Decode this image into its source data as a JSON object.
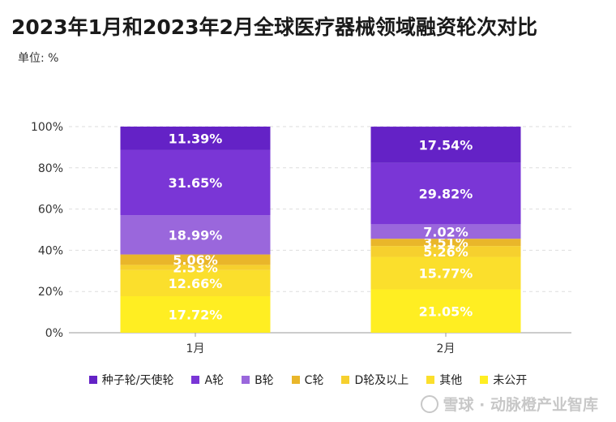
{
  "page": {
    "title": "2023年1月和2023年2月全球医疗器械领域融资轮次对比",
    "unit": "单位: %",
    "watermark": "雪球 · 动脉橙产业智库",
    "watermark_icon": "snowball-logo-icon"
  },
  "chart_data": {
    "type": "bar",
    "stacked": true,
    "categories": [
      "1月",
      "2月"
    ],
    "ylim": [
      0,
      100
    ],
    "yticks": [
      "0%",
      "20%",
      "40%",
      "60%",
      "80%",
      "100%"
    ],
    "grid": true,
    "legend_position": "bottom",
    "series": [
      {
        "name": "未公开",
        "color": "#ffee22",
        "values": [
          17.72,
          21.05
        ],
        "labels": [
          "17.72%",
          "21.05%"
        ]
      },
      {
        "name": "其他",
        "color": "#fbdf2c",
        "values": [
          12.66,
          15.77
        ],
        "labels": [
          "12.66%",
          "15.77%"
        ]
      },
      {
        "name": "D轮及以上",
        "color": "#f6d02e",
        "values": [
          2.53,
          5.26
        ],
        "labels": [
          "2.53%",
          "5.26%"
        ]
      },
      {
        "name": "C轮",
        "color": "#e9b62a",
        "values": [
          5.06,
          3.51
        ],
        "labels": [
          "5.06%",
          "3.51%"
        ]
      },
      {
        "name": "B轮",
        "color": "#9a67dc",
        "values": [
          18.99,
          7.02
        ],
        "labels": [
          "18.99%",
          "7.02%"
        ]
      },
      {
        "name": "A轮",
        "color": "#7a36d6",
        "values": [
          31.65,
          29.82
        ],
        "labels": [
          "31.65%",
          "29.82%"
        ]
      },
      {
        "name": "种子轮/天使轮",
        "color": "#6422c6",
        "values": [
          11.39,
          17.54
        ],
        "labels": [
          "11.39%",
          "17.54%"
        ]
      }
    ],
    "legend_order": [
      "种子轮/天使轮",
      "A轮",
      "B轮",
      "C轮",
      "D轮及以上",
      "其他",
      "未公开"
    ]
  }
}
